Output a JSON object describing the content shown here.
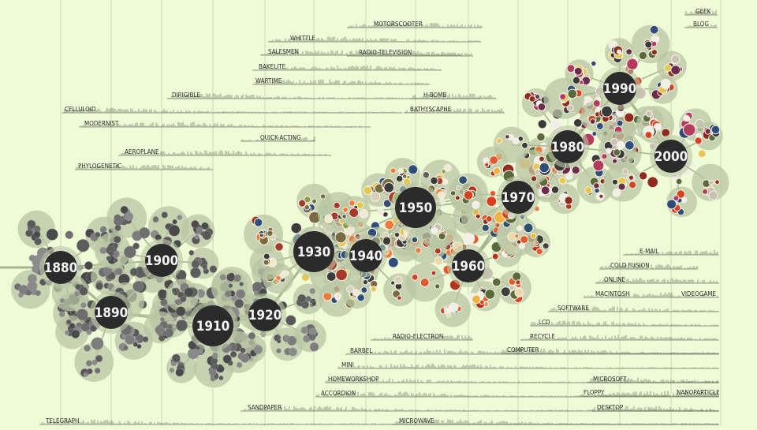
{
  "decades": [
    {
      "label": "1880",
      "size": "md"
    },
    {
      "label": "1890",
      "size": "md"
    },
    {
      "label": "1900",
      "size": "md"
    },
    {
      "label": "1910",
      "size": "lg"
    },
    {
      "label": "1920",
      "size": "md"
    },
    {
      "label": "1930",
      "size": "lg"
    },
    {
      "label": "1940",
      "size": "md"
    },
    {
      "label": "1950",
      "size": "lg"
    },
    {
      "label": "1960",
      "size": "md"
    },
    {
      "label": "1970",
      "size": "md"
    },
    {
      "label": "1980",
      "size": "md"
    },
    {
      "label": "1990",
      "size": "md"
    },
    {
      "label": "2000",
      "size": "md"
    }
  ],
  "words": [
    "GEEK",
    "BLOG",
    "MOTORSCOOTER",
    "WHITTLE",
    "SALESMEN",
    "RADIO-TELEVISION",
    "BAKELITE",
    "WARTIME",
    "DIRIGIBLE",
    "H-BOMB",
    "CELLULOID",
    "BATHYSCAPHE",
    "MODERNIST",
    "QUICK-ACTING",
    "AEROPLANE",
    "PHYLOGENETIC",
    "E-MAIL",
    "COLD FUSION",
    "ONLINE",
    "MACINTOSH",
    "VIDEOGAME",
    "SOFTWARE",
    "LCD",
    "RECYCLE",
    "RADIO-ELECTRON",
    "BARBEL",
    "COMPUTER",
    "MINI",
    "HOMEWORKSHOP",
    "MICROSOFT",
    "ACCORDION",
    "FLOPPY",
    "NANOPARTICLE",
    "SANDPAPER",
    "DESKTOP",
    "TELEGRAPH",
    "MICROWAVE"
  ],
  "colors": {
    "background": "#effbd6",
    "hub": "#2b2b2b",
    "halo": "#b9c6a3",
    "link": "#a7b691",
    "sparkline": "#8f9b84",
    "grid": "#c3cfae"
  }
}
